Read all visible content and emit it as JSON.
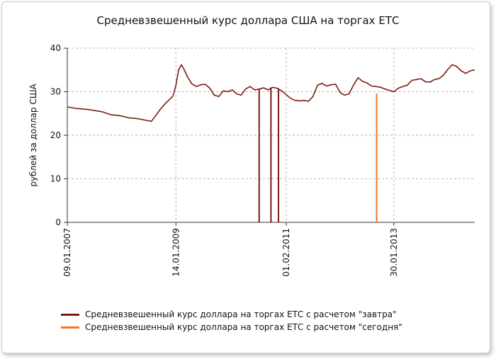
{
  "chart_data": {
    "type": "line",
    "title": "Средневзвешенный курс доллара США на торгах ЕТС",
    "xlabel": "",
    "ylabel": "рублей за доллар США",
    "ylim": [
      0,
      40
    ],
    "yticks": [
      0,
      10,
      20,
      30,
      40
    ],
    "xtick_labels": [
      "09.01.2007",
      "14.01.2009",
      "01.02.2011",
      "30.01.2013"
    ],
    "xlim": [
      "2007-01-09",
      "2014-08-01"
    ],
    "grid": true,
    "legend_position": "bottom",
    "series": [
      {
        "name": "Средневзвешенный курс доллара на торгах ЕТС с расчетом \"завтра\"",
        "color": "#7b1b12",
        "points": [
          [
            "2007-01-09",
            26.5
          ],
          [
            "2007-03-01",
            26.2
          ],
          [
            "2007-06-01",
            25.9
          ],
          [
            "2007-09-01",
            25.4
          ],
          [
            "2007-11-01",
            24.7
          ],
          [
            "2008-01-01",
            24.5
          ],
          [
            "2008-03-01",
            24.0
          ],
          [
            "2008-05-01",
            23.8
          ],
          [
            "2008-07-01",
            23.4
          ],
          [
            "2008-08-01",
            23.2
          ],
          [
            "2008-09-01",
            24.6
          ],
          [
            "2008-10-01",
            26.0
          ],
          [
            "2008-11-01",
            27.2
          ],
          [
            "2008-12-01",
            28.2
          ],
          [
            "2008-12-25",
            29.0
          ],
          [
            "2009-01-14",
            31.5
          ],
          [
            "2009-02-01",
            35.0
          ],
          [
            "2009-02-20",
            36.2
          ],
          [
            "2009-03-15",
            34.8
          ],
          [
            "2009-04-01",
            33.5
          ],
          [
            "2009-05-01",
            31.8
          ],
          [
            "2009-06-01",
            31.2
          ],
          [
            "2009-07-01",
            31.6
          ],
          [
            "2009-08-01",
            31.7
          ],
          [
            "2009-09-01",
            30.8
          ],
          [
            "2009-10-01",
            29.2
          ],
          [
            "2009-11-01",
            28.9
          ],
          [
            "2009-12-01",
            30.2
          ],
          [
            "2010-01-01",
            30.0
          ],
          [
            "2010-02-01",
            30.4
          ],
          [
            "2010-03-01",
            29.5
          ],
          [
            "2010-04-01",
            29.2
          ],
          [
            "2010-05-01",
            30.6
          ],
          [
            "2010-06-01",
            31.2
          ],
          [
            "2010-07-01",
            30.4
          ],
          [
            "2010-08-01",
            30.6
          ],
          [
            "2010-09-01",
            30.9
          ],
          [
            "2010-10-01",
            30.4
          ],
          [
            "2010-11-01",
            31.0
          ],
          [
            "2010-12-01",
            30.8
          ],
          [
            "2011-01-01",
            30.2
          ],
          [
            "2011-02-01",
            29.3
          ],
          [
            "2011-03-01",
            28.5
          ],
          [
            "2011-04-01",
            28.0
          ],
          [
            "2011-05-01",
            27.9
          ],
          [
            "2011-06-01",
            28.0
          ],
          [
            "2011-07-01",
            27.8
          ],
          [
            "2011-08-01",
            28.9
          ],
          [
            "2011-09-01",
            31.5
          ],
          [
            "2011-10-01",
            31.9
          ],
          [
            "2011-11-01",
            31.3
          ],
          [
            "2011-12-01",
            31.6
          ],
          [
            "2012-01-01",
            31.7
          ],
          [
            "2012-02-01",
            29.8
          ],
          [
            "2012-03-01",
            29.2
          ],
          [
            "2012-04-01",
            29.5
          ],
          [
            "2012-05-01",
            31.5
          ],
          [
            "2012-06-01",
            33.2
          ],
          [
            "2012-07-01",
            32.4
          ],
          [
            "2012-08-01",
            32.0
          ],
          [
            "2012-09-01",
            31.3
          ],
          [
            "2012-10-01",
            31.2
          ],
          [
            "2012-11-01",
            31.0
          ],
          [
            "2012-12-01",
            30.6
          ],
          [
            "2013-01-30",
            30.0
          ],
          [
            "2013-03-01",
            30.8
          ],
          [
            "2013-04-01",
            31.2
          ],
          [
            "2013-05-01",
            31.5
          ],
          [
            "2013-06-01",
            32.6
          ],
          [
            "2013-07-01",
            32.8
          ],
          [
            "2013-08-01",
            33.0
          ],
          [
            "2013-09-01",
            32.3
          ],
          [
            "2013-10-01",
            32.2
          ],
          [
            "2013-11-01",
            32.8
          ],
          [
            "2013-12-01",
            33.0
          ],
          [
            "2014-01-01",
            33.8
          ],
          [
            "2014-02-01",
            35.2
          ],
          [
            "2014-03-01",
            36.2
          ],
          [
            "2014-04-01",
            35.8
          ],
          [
            "2014-05-01",
            34.8
          ],
          [
            "2014-06-01",
            34.2
          ],
          [
            "2014-07-01",
            34.8
          ],
          [
            "2014-08-01",
            35.0
          ]
        ],
        "drops_to_zero": [
          "2010-08-01",
          "2010-10-20",
          "2010-12-10"
        ]
      },
      {
        "name": "Средневзвешенный курс доллара на торгах ЕТС с расчетом \"сегодня\"",
        "color": "#f07a22",
        "points": [
          [
            "2012-10-05",
            29.6
          ]
        ],
        "drops_to_zero": [
          "2012-10-05"
        ]
      }
    ]
  }
}
